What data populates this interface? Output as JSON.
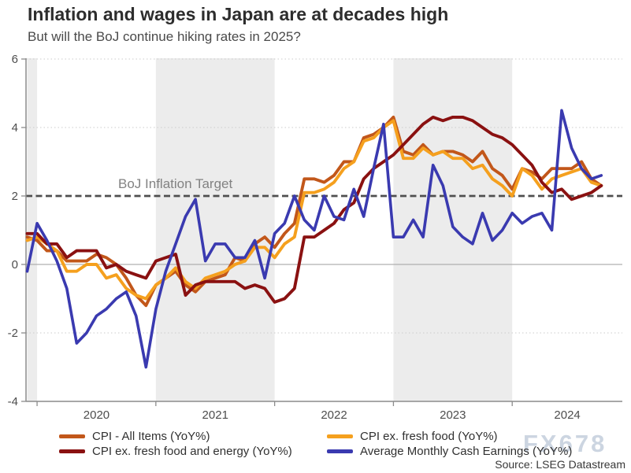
{
  "chart_data": {
    "type": "line",
    "title": "Inflation and wages in Japan are at decades high",
    "subtitle": "But will the BoJ continue hiking rates in 2025?",
    "x_frequency": "monthly",
    "x_start": "2019-12",
    "x_end": "2024-10",
    "xticks": [
      2020,
      2021,
      2022,
      2023,
      2024
    ],
    "ylim": [
      -4,
      6
    ],
    "yticks": [
      6,
      4,
      2,
      0,
      -2,
      -4
    ],
    "shaded_years": [
      2019,
      2021,
      2023
    ],
    "grid": "dotted horizontal at 6, 4, -2; solid zero line",
    "legend_position": "bottom, two columns",
    "annotation": {
      "label": "BoJ Inflation Target",
      "y": 2
    },
    "series": [
      {
        "name": "CPI - All Items (YoY%)",
        "color": "#c2571a",
        "values": [
          0.8,
          0.7,
          0.4,
          0.4,
          0.1,
          0.1,
          0.1,
          0.3,
          0.2,
          0.0,
          -0.4,
          -0.9,
          -1.2,
          -0.6,
          -0.4,
          -0.2,
          -0.6,
          -0.8,
          -0.5,
          -0.4,
          -0.3,
          0.2,
          0.1,
          0.6,
          0.8,
          0.5,
          0.9,
          1.2,
          2.5,
          2.5,
          2.4,
          2.6,
          3.0,
          3.0,
          3.7,
          3.8,
          4.0,
          4.3,
          3.3,
          3.2,
          3.5,
          3.2,
          3.3,
          3.3,
          3.2,
          3.0,
          3.3,
          2.8,
          2.6,
          2.2,
          2.8,
          2.7,
          2.5,
          2.8,
          2.8,
          2.8,
          3.0,
          2.5,
          2.3
        ]
      },
      {
        "name": "CPI ex. fresh food (YoY%)",
        "color": "#f5a01e",
        "values": [
          0.7,
          0.8,
          0.6,
          0.4,
          -0.2,
          -0.2,
          0.0,
          0.0,
          -0.4,
          -0.3,
          -0.7,
          -0.9,
          -1.0,
          -0.6,
          -0.4,
          -0.1,
          -0.5,
          -0.7,
          -0.4,
          -0.3,
          -0.2,
          0.0,
          0.1,
          0.5,
          0.5,
          0.2,
          0.6,
          0.8,
          2.1,
          2.1,
          2.2,
          2.4,
          2.8,
          3.0,
          3.6,
          3.7,
          4.0,
          4.2,
          3.1,
          3.1,
          3.4,
          3.2,
          3.3,
          3.1,
          3.1,
          2.8,
          2.9,
          2.5,
          2.3,
          2.0,
          2.8,
          2.6,
          2.2,
          2.5,
          2.6,
          2.7,
          2.8,
          2.4,
          2.3
        ]
      },
      {
        "name": "CPI ex. fresh food and energy (YoY%)",
        "color": "#8a1111",
        "values": [
          0.9,
          0.9,
          0.6,
          0.6,
          0.2,
          0.4,
          0.4,
          0.4,
          -0.1,
          0.0,
          -0.2,
          -0.3,
          -0.4,
          0.1,
          0.2,
          0.3,
          -0.9,
          -0.6,
          -0.5,
          -0.5,
          -0.5,
          -0.5,
          -0.7,
          -0.6,
          -0.7,
          -1.1,
          -1.0,
          -0.7,
          0.8,
          0.8,
          1.0,
          1.2,
          1.6,
          1.8,
          2.5,
          2.8,
          3.0,
          3.2,
          3.5,
          3.8,
          4.1,
          4.3,
          4.2,
          4.3,
          4.3,
          4.2,
          4.0,
          3.8,
          3.7,
          3.5,
          3.2,
          2.9,
          2.4,
          2.1,
          2.2,
          1.9,
          2.0,
          2.1,
          2.3
        ]
      },
      {
        "name": "Average Monthly Cash Earnings (YoY%)",
        "color": "#3a3ab0",
        "values": [
          -0.2,
          1.2,
          0.7,
          0.1,
          -0.7,
          -2.3,
          -2.0,
          -1.5,
          -1.3,
          -1.0,
          -0.8,
          -1.5,
          -3.0,
          -1.3,
          -0.2,
          0.6,
          1.4,
          1.9,
          0.1,
          0.6,
          0.6,
          0.2,
          0.2,
          0.7,
          -0.4,
          0.9,
          1.2,
          2.0,
          1.3,
          1.0,
          2.0,
          1.4,
          1.3,
          2.2,
          1.4,
          2.8,
          4.1,
          0.8,
          0.8,
          1.3,
          0.8,
          2.9,
          2.3,
          1.1,
          0.8,
          0.6,
          1.5,
          0.7,
          1.0,
          1.5,
          1.2,
          1.4,
          1.5,
          1.0,
          4.5,
          3.4,
          2.8,
          2.5,
          2.6
        ]
      }
    ]
  },
  "source_note": "Source: LSEG Datastream",
  "watermark": "FX678",
  "colors": {
    "shaded_band": "#ececec",
    "target_line": "#4f4f4f",
    "grid": "#cbcbcb",
    "zero_line": "#b0b0b0",
    "axis": "#8c8c8c",
    "tick_text": "#4d4d4d"
  }
}
